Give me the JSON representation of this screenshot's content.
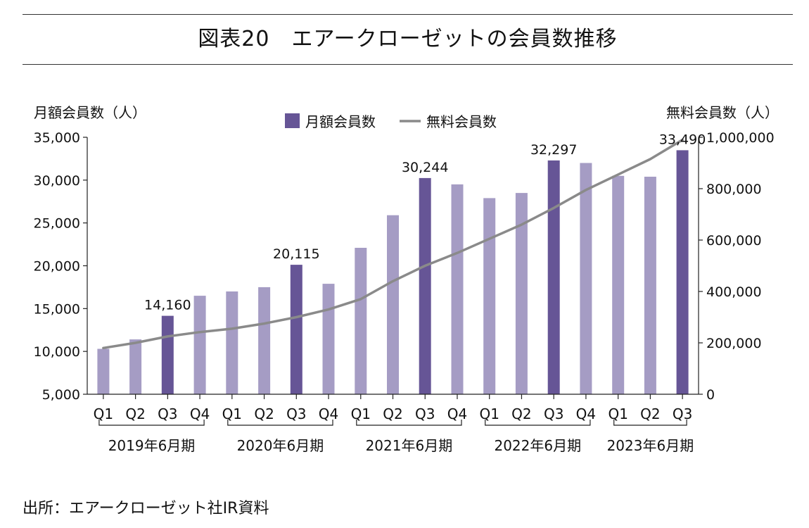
{
  "title": "図表20　エアークローゼットの会員数推移",
  "source": "出所：エアークローゼット社IR資料",
  "chart_data": {
    "type": "bar",
    "categories": [
      "Q1",
      "Q2",
      "Q3",
      "Q4",
      "Q1",
      "Q2",
      "Q3",
      "Q4",
      "Q1",
      "Q2",
      "Q3",
      "Q4",
      "Q1",
      "Q2",
      "Q3",
      "Q4",
      "Q1",
      "Q2",
      "Q3"
    ],
    "groups": [
      {
        "label": "2019年6月期",
        "count": 4
      },
      {
        "label": "2020年6月期",
        "count": 4
      },
      {
        "label": "2021年6月期",
        "count": 4
      },
      {
        "label": "2022年6月期",
        "count": 4
      },
      {
        "label": "2023年6月期",
        "count": 3
      }
    ],
    "ylabel_left": "月額会員数（人）",
    "ylabel_right": "無料会員数（人）",
    "ylim_left": [
      5000,
      35000
    ],
    "yticks_left": [
      "5,000",
      "10,000",
      "15,000",
      "20,000",
      "25,000",
      "30,000",
      "35,000"
    ],
    "ylim_right": [
      0,
      1000000
    ],
    "yticks_right": [
      "0",
      "200,000",
      "400,000",
      "600,000",
      "800,000",
      "1,000,000"
    ],
    "legend_position": "top-center",
    "series": [
      {
        "name": "月額会員数",
        "type": "bar",
        "axis": "left",
        "color": "#a59cc4",
        "highlight_color": "#665596",
        "values": [
          10300,
          11400,
          14160,
          16500,
          17000,
          17500,
          20115,
          17900,
          22100,
          25900,
          30244,
          29500,
          27900,
          28500,
          32297,
          32000,
          30500,
          30400,
          33490
        ],
        "highlighted_indices": [
          2,
          6,
          10,
          14,
          18
        ],
        "data_labels": [
          {
            "index": 2,
            "text": "14,160"
          },
          {
            "index": 6,
            "text": "20,115"
          },
          {
            "index": 10,
            "text": "30,244"
          },
          {
            "index": 14,
            "text": "32,297"
          },
          {
            "index": 18,
            "text": "33,490"
          }
        ]
      },
      {
        "name": "無料会員数",
        "type": "line",
        "axis": "right",
        "color": "#8a8a8a",
        "values": [
          180000,
          200000,
          225000,
          242000,
          255000,
          275000,
          300000,
          330000,
          370000,
          440000,
          500000,
          550000,
          605000,
          660000,
          725000,
          795000,
          855000,
          915000,
          990000
        ]
      }
    ]
  }
}
